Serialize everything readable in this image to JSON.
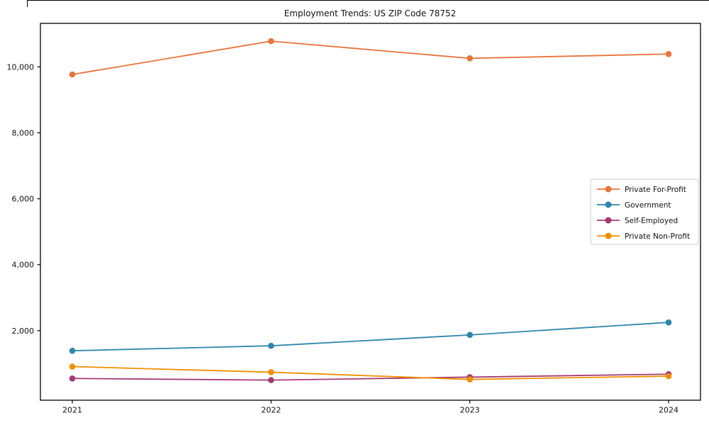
{
  "chart_data": {
    "type": "line",
    "title": "Employment Trends: US ZIP Code 78752",
    "x": [
      2021,
      2022,
      2023,
      2024
    ],
    "x_tick_labels": [
      "2021",
      "2022",
      "2023",
      "2024"
    ],
    "y_tick_values": [
      2000,
      4000,
      6000,
      8000,
      10000
    ],
    "y_tick_labels": [
      "2,000",
      "4,000",
      "6,000",
      "8,000",
      "10,000"
    ],
    "ylim": [
      -110,
      11320
    ],
    "grid": false,
    "legend_position": "center right",
    "series": [
      {
        "name": "Private For-Profit",
        "color": "#E8743B",
        "values": [
          9770,
          10780,
          10260,
          10390
        ]
      },
      {
        "name": "Government",
        "color": "#2E86AB",
        "values": [
          1390,
          1540,
          1870,
          2250
        ]
      },
      {
        "name": "Self-Employed",
        "color": "#A23B72",
        "values": [
          550,
          500,
          590,
          680
        ]
      },
      {
        "name": "Private Non-Profit",
        "color": "#F18F01",
        "values": [
          910,
          740,
          520,
          620
        ]
      }
    ],
    "axis_color": "#000000",
    "text_color": "#111111",
    "legend_border_color": "#cccccc"
  }
}
